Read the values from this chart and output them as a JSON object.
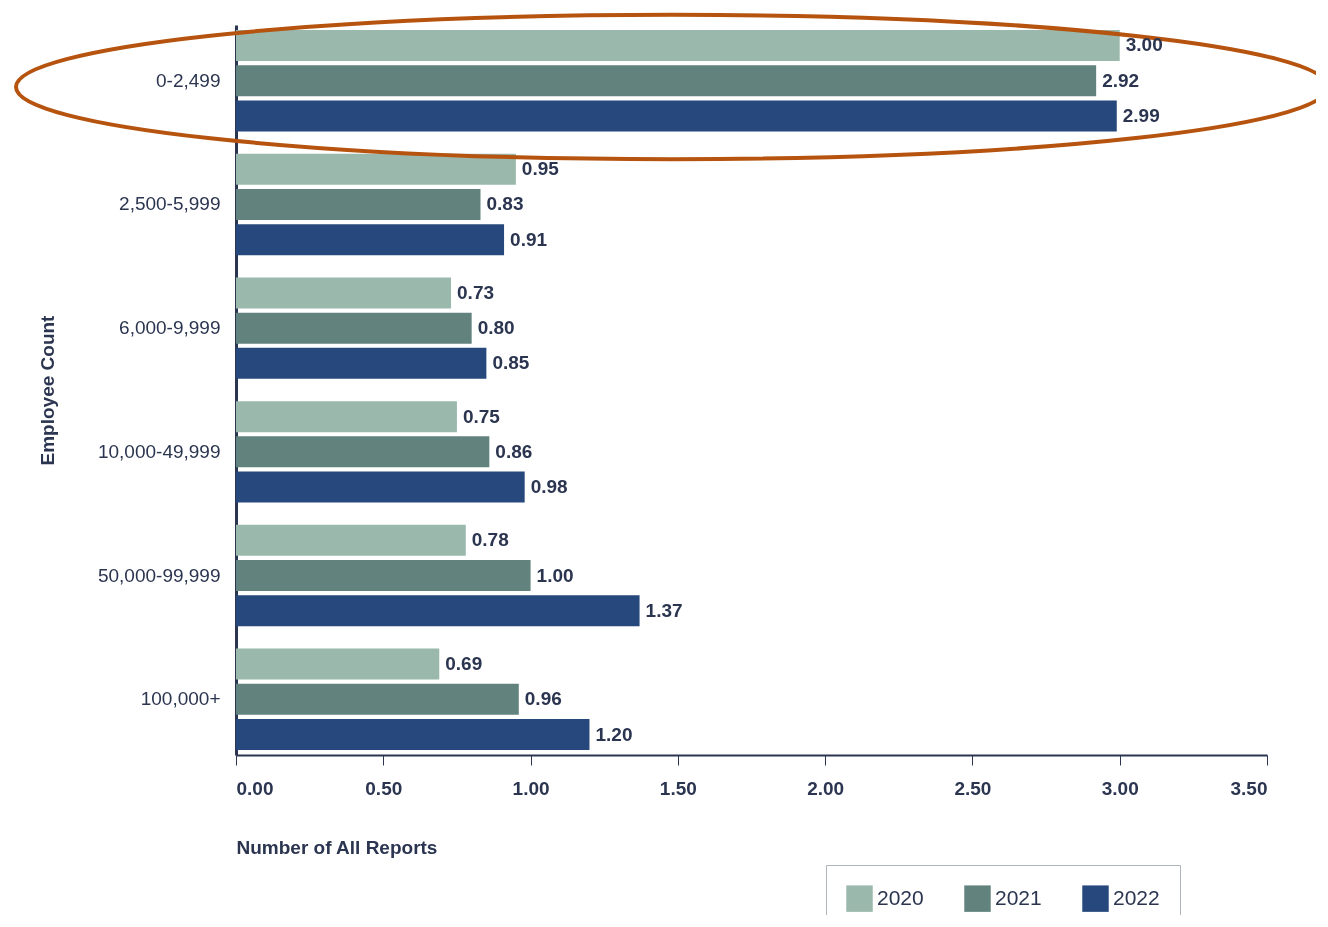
{
  "chart_data": {
    "type": "bar",
    "orientation": "horizontal",
    "xlabel": "Number of All Reports",
    "ylabel": "Employee Count",
    "categories": [
      "0-2,499",
      "2,500-5,999",
      "6,000-9,999",
      "10,000-49,999",
      "50,000-99,999",
      "100,000+"
    ],
    "series": [
      {
        "name": "2020",
        "color": "#9ab8ac",
        "values": [
          3.0,
          0.95,
          0.73,
          0.75,
          0.78,
          0.69
        ],
        "value_labels": [
          "3.00",
          "0.95",
          "0.73",
          "0.75",
          "0.78",
          "0.69"
        ]
      },
      {
        "name": "2021",
        "color": "#62827e",
        "values": [
          2.92,
          0.83,
          0.8,
          0.86,
          1.0,
          0.96
        ],
        "value_labels": [
          "2.92",
          "0.83",
          "0.80",
          "0.86",
          "1.00",
          "0.96"
        ]
      },
      {
        "name": "2022",
        "color": "#27487c",
        "values": [
          2.99,
          0.91,
          0.85,
          0.98,
          1.37,
          1.2
        ],
        "value_labels": [
          "2.99",
          "0.91",
          "0.85",
          "0.98",
          "1.37",
          "1.20"
        ]
      }
    ],
    "xlim": [
      0,
      3.5
    ],
    "xticks": [
      {
        "value": 0,
        "label": "0.00"
      },
      {
        "value": 0.5,
        "label": "0.50"
      },
      {
        "value": 1,
        "label": "1.00"
      },
      {
        "value": 1.5,
        "label": "1.50"
      },
      {
        "value": 2,
        "label": "2.00"
      },
      {
        "value": 2.5,
        "label": "2.50"
      },
      {
        "value": 3,
        "label": "3.00"
      },
      {
        "value": 3.5,
        "label": "3.50"
      }
    ],
    "legend": "bottom right",
    "grid": false
  }
}
